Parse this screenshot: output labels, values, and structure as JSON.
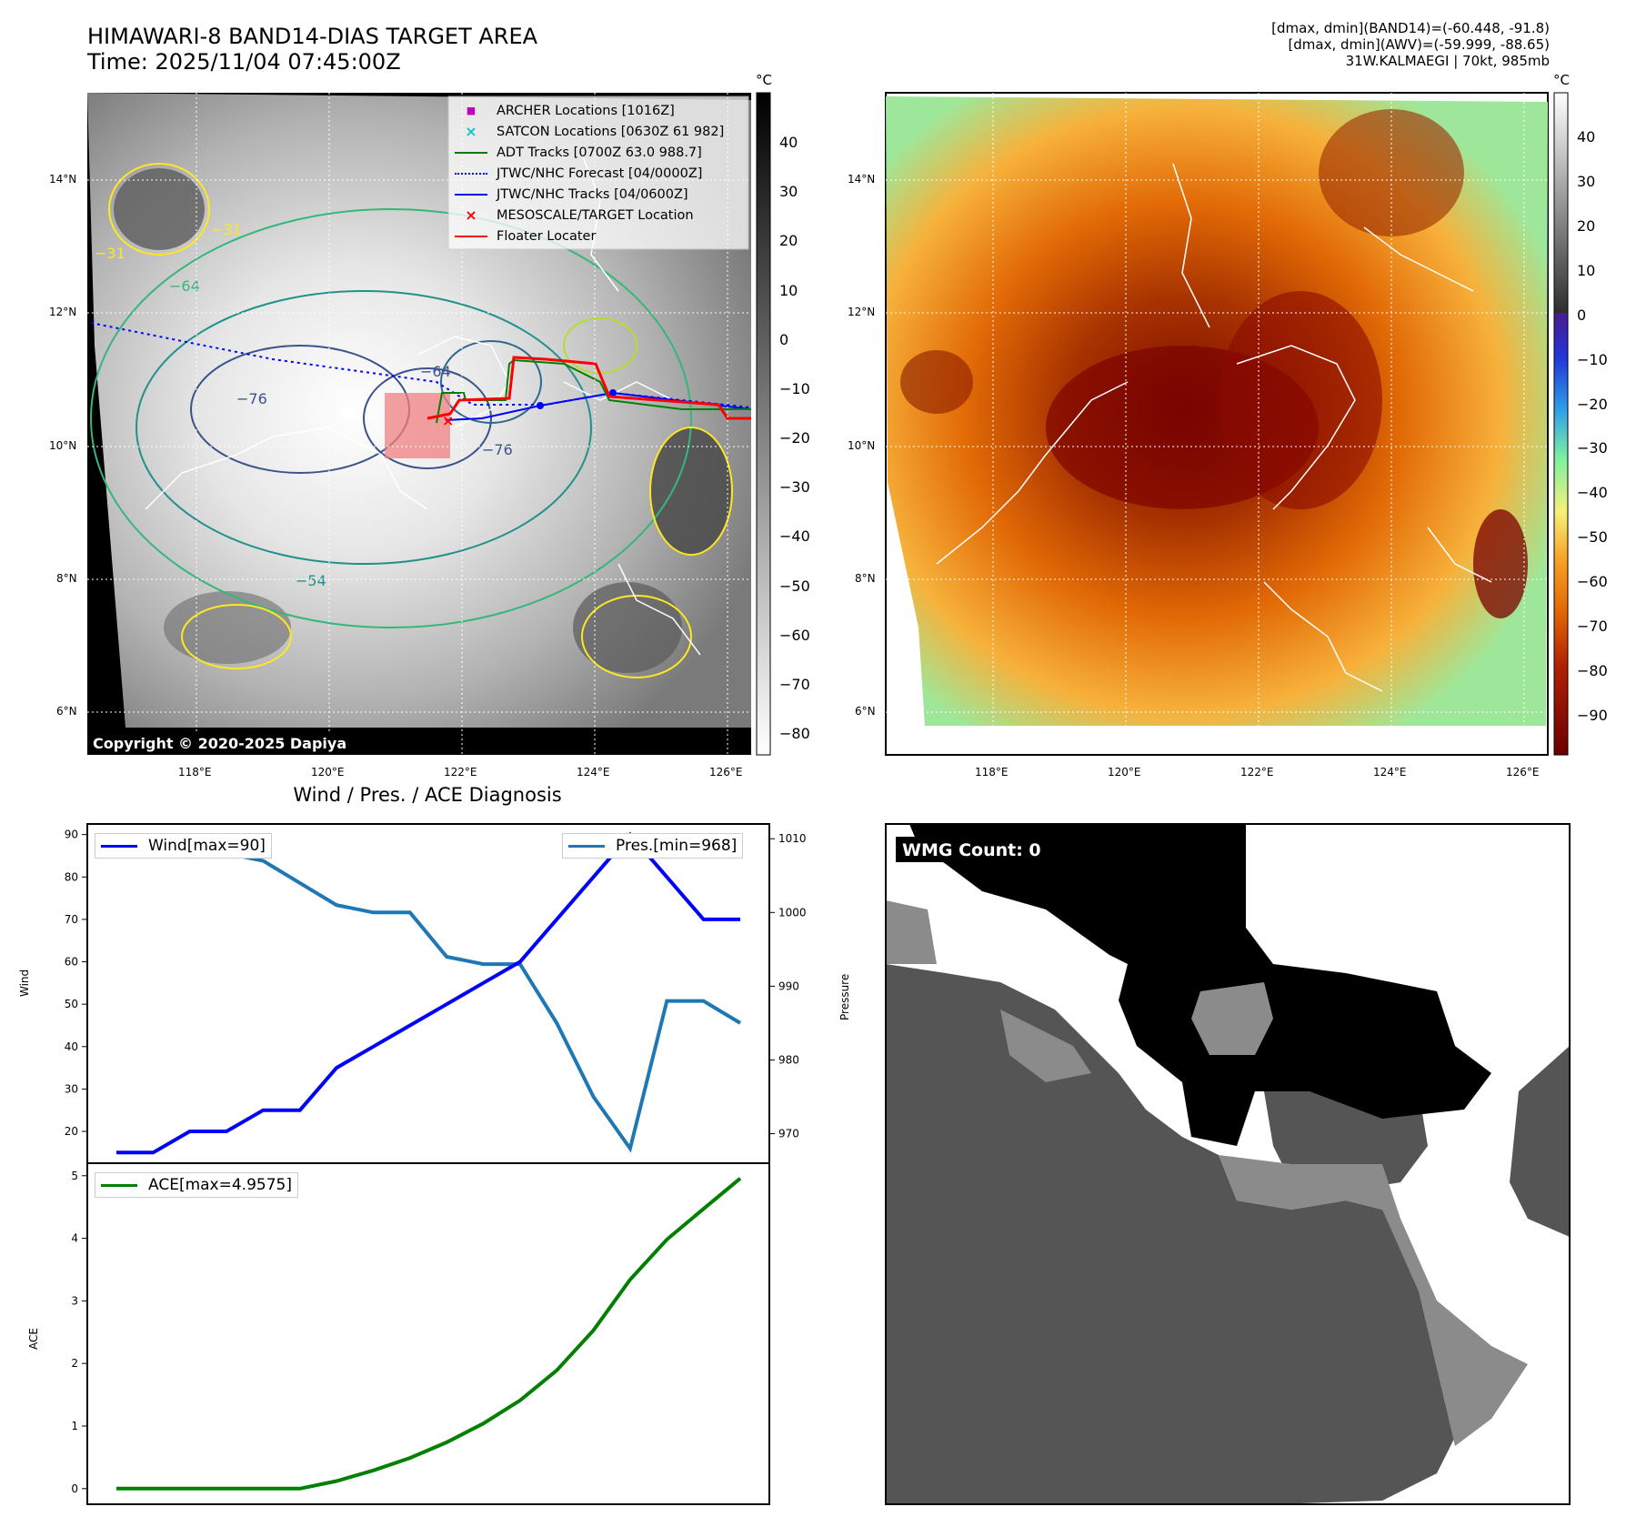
{
  "header": {
    "title_line1": "HIMAWARI-8 BAND14-DIAS TARGET AREA",
    "title_line2": "Time: 2025/11/04 07:45:00Z",
    "stats_line1": "[dmax, dmin](BAND14)=(-60.448, -91.8)",
    "stats_line2": "[dmax, dmin](AWV)=(-59.999, -88.65)",
    "stats_line3": "31W.KALMAEGI | 70kt, 985mb"
  },
  "map_axes": {
    "lat_labels": [
      "14°N",
      "12°N",
      "10°N",
      "8°N",
      "6°N"
    ],
    "lon_labels": [
      "118°E",
      "120°E",
      "122°E",
      "124°E",
      "126°E"
    ]
  },
  "ir_panel": {
    "colorbar_unit": "°C",
    "colorbar_ticks": [
      "40",
      "30",
      "20",
      "10",
      "0",
      "−10",
      "−20",
      "−30",
      "−40",
      "−50",
      "−60",
      "−70",
      "−80"
    ],
    "contour_labels": [
      "−64",
      "−76",
      "−76",
      "−54",
      "−31",
      "−31",
      "−64"
    ],
    "copyright": "Copyright © 2020-2025 Dapiya",
    "legend": [
      {
        "label": "ARCHER Locations [1016Z]",
        "color": "#bf00bf",
        "symbol": "square"
      },
      {
        "label": "SATCON Locations [0630Z 61 982]",
        "color": "#17becf",
        "symbol": "x"
      },
      {
        "label": "ADT Tracks [0700Z 63.0 988.7]",
        "color": "#008000",
        "symbol": "line"
      },
      {
        "label": "JTWC/NHC Forecast [04/0000Z]",
        "color": "#0000ff",
        "symbol": "dotted"
      },
      {
        "label": "JTWC/NHC Tracks [04/0600Z]",
        "color": "#0000ff",
        "symbol": "line-dot"
      },
      {
        "label": "MESOSCALE/TARGET Location",
        "color": "#ff0000",
        "symbol": "x"
      },
      {
        "label": "Floater Locater",
        "color": "#ff0000",
        "symbol": "line"
      }
    ]
  },
  "awv_panel": {
    "colorbar_unit": "°C",
    "colorbar_ticks": [
      "40",
      "30",
      "20",
      "10",
      "0",
      "−10",
      "−20",
      "−30",
      "−40",
      "−50",
      "−60",
      "−70",
      "−80",
      "−90"
    ]
  },
  "diagnosis": {
    "title": "Wind / Pres. / ACE Diagnosis",
    "wind_legend": "Wind[max=90]",
    "pres_legend": "Pres.[min=968]",
    "ace_legend": "ACE[max=4.9575]",
    "wind_axis_label": "Wind",
    "pres_axis_label": "Pressure",
    "ace_axis_label": "ACE"
  },
  "wmg_panel": {
    "label": "WMG Count: 0"
  },
  "chart_data": [
    {
      "type": "line",
      "title": "Wind / Pres. / ACE Diagnosis",
      "ylabel": "Wind",
      "ylim": [
        12.5,
        92.5
      ],
      "yticks": [
        20,
        30,
        40,
        50,
        60,
        70,
        80,
        90
      ],
      "series": [
        {
          "name": "Wind[max=90]",
          "color": "#0000ff",
          "values": [
            15,
            15,
            20,
            20,
            25,
            25,
            35,
            40,
            45,
            50,
            55,
            60,
            70,
            80,
            90,
            80,
            70,
            70
          ]
        }
      ]
    },
    {
      "type": "line",
      "ylabel": "Pressure",
      "ylim": [
        966,
        1012
      ],
      "yticks": [
        970,
        980,
        990,
        1000,
        1010
      ],
      "series": [
        {
          "name": "Pres.[min=968]",
          "color": "#1f77b4",
          "values": [
            1010,
            1008,
            1008,
            1008,
            1007,
            1004,
            1001,
            1000,
            1000,
            994,
            993,
            993,
            985,
            975,
            968,
            988,
            988,
            985
          ]
        }
      ]
    },
    {
      "type": "line",
      "ylabel": "ACE",
      "ylim": [
        -0.25,
        5.2
      ],
      "yticks": [
        0,
        1,
        2,
        3,
        4,
        5
      ],
      "series": [
        {
          "name": "ACE[max=4.9575]",
          "color": "#008000",
          "values": [
            0,
            0,
            0,
            0,
            0,
            0,
            0.12,
            0.29,
            0.49,
            0.74,
            1.04,
            1.41,
            1.89,
            2.53,
            3.34,
            3.98,
            4.47,
            4.9575
          ]
        }
      ]
    }
  ]
}
